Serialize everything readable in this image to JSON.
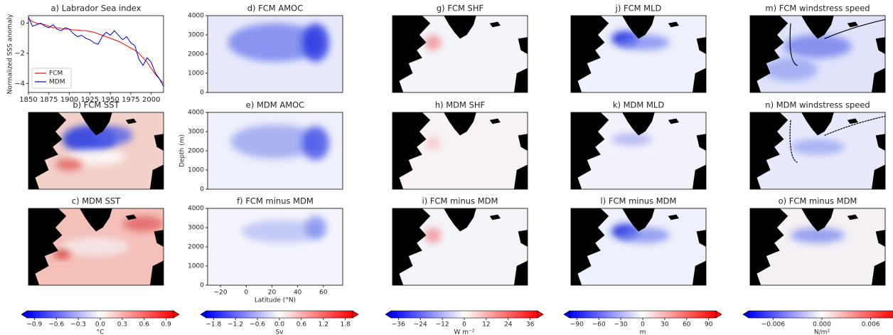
{
  "chart_data": [
    {
      "type": "line",
      "title": "a) Labrador Sea index",
      "y_label": "Normalized SSS anomaly",
      "x": [
        1850,
        1855,
        1860,
        1865,
        1870,
        1875,
        1880,
        1885,
        1890,
        1895,
        1900,
        1905,
        1910,
        1915,
        1920,
        1925,
        1930,
        1935,
        1940,
        1945,
        1950,
        1955,
        1960,
        1965,
        1970,
        1975,
        1980,
        1985,
        1990,
        1995,
        2000,
        2005,
        2010,
        2015
      ],
      "series": [
        {
          "name": "FCM",
          "color": "#ff0000",
          "values": [
            0.3,
            0.1,
            0.0,
            -0.05,
            -0.1,
            -0.2,
            -0.3,
            -0.3,
            -0.35,
            -0.4,
            -0.4,
            -0.45,
            -0.45,
            -0.5,
            -0.5,
            -0.55,
            -0.6,
            -0.7,
            -0.8,
            -0.9,
            -1.0,
            -1.1,
            -1.2,
            -1.35,
            -1.5,
            -1.65,
            -1.8,
            -2.0,
            -2.3,
            -2.6,
            -3.0,
            -3.4,
            -3.7,
            -4.0
          ]
        },
        {
          "name": "MDM",
          "color": "#0000cc",
          "values": [
            0.4,
            -0.2,
            -0.1,
            0.0,
            -0.2,
            -0.3,
            -0.1,
            -0.4,
            -0.5,
            -0.3,
            -0.4,
            -0.7,
            -0.9,
            -0.8,
            -1.0,
            -1.1,
            -1.3,
            -1.4,
            -0.9,
            -0.6,
            -0.8,
            -0.5,
            -0.8,
            -1.1,
            -0.9,
            -1.3,
            -1.5,
            -2.4,
            -2.8,
            -2.3,
            -2.6,
            -3.3,
            -3.7,
            -4.2
          ]
        }
      ],
      "xlim": [
        1850,
        2015
      ],
      "xticks": [
        1850,
        1875,
        1900,
        1925,
        1950,
        1975,
        2000
      ],
      "ylim": [
        -4.6,
        0.5
      ],
      "yticks": [
        0,
        {
          "value": -2,
          "label": "−2"
        },
        {
          "value": -4,
          "label": "−4"
        }
      ],
      "legend": "lower left"
    },
    {
      "type": "map",
      "title": "b) FCM SST"
    },
    {
      "type": "map",
      "title": "c) MDM SST"
    },
    {
      "type": "contour",
      "title": "d) FCM AMOC",
      "xlim": [
        -30,
        75
      ],
      "ylim": [
        4000,
        0
      ],
      "yticks": [
        0,
        1000,
        2000,
        3000,
        4000
      ]
    },
    {
      "type": "contour",
      "title": "e) MDM AMOC",
      "y_label": "Depth (m)",
      "xlim": [
        -30,
        75
      ],
      "ylim": [
        4000,
        0
      ],
      "yticks": [
        0,
        1000,
        2000,
        3000,
        4000
      ]
    },
    {
      "type": "contour",
      "title": "f) FCM minus MDM",
      "x_label": "Latitude (°N)",
      "xlim": [
        -30,
        75
      ],
      "ylim": [
        4000,
        0
      ],
      "yticks": [
        0,
        1000,
        2000,
        3000,
        4000
      ],
      "xticks": [
        {
          "value": -20,
          "label": "−20"
        },
        0,
        20,
        40,
        60
      ]
    },
    {
      "type": "map",
      "title": "g) FCM SHF"
    },
    {
      "type": "map",
      "title": "h) MDM SHF"
    },
    {
      "type": "map",
      "title": "i) FCM minus MDM"
    },
    {
      "type": "map",
      "title": "j) FCM MLD"
    },
    {
      "type": "map",
      "title": "k) MDM MLD"
    },
    {
      "type": "map",
      "title": "l) FCM minus MDM"
    },
    {
      "type": "map",
      "title": "m) FCM windstress speed"
    },
    {
      "type": "map",
      "title": "n) MDM windstress speed"
    },
    {
      "type": "map",
      "title": "o) FCM minus MDM"
    },
    {
      "type": "colorbar",
      "label": "°C",
      "lim": [
        -1.0,
        1.0
      ],
      "ticks": [
        {
          "value": -0.9,
          "label": "−0.9"
        },
        {
          "value": -0.6,
          "label": "−0.6"
        },
        {
          "value": -0.3,
          "label": "−0.3"
        },
        {
          "value": 0,
          "label": "0.0"
        },
        0.3,
        0.6,
        0.9
      ]
    },
    {
      "type": "colorbar",
      "label": "Sv",
      "lim": [
        -2.0,
        2.0
      ],
      "ticks": [
        {
          "value": -1.8,
          "label": "−1.8"
        },
        {
          "value": -1.2,
          "label": "−1.2"
        },
        {
          "value": -0.6,
          "label": "−0.6"
        },
        {
          "value": 0,
          "label": "0.0"
        },
        0.6,
        1.2,
        1.8
      ]
    },
    {
      "type": "colorbar",
      "label": "W m⁻²",
      "lim": [
        -40,
        40
      ],
      "ticks": [
        {
          "value": -36,
          "label": "−36"
        },
        {
          "value": -24,
          "label": "−24"
        },
        {
          "value": -12,
          "label": "−12"
        },
        0,
        12,
        24,
        36
      ]
    },
    {
      "type": "colorbar",
      "label": "m",
      "lim": [
        -100,
        100
      ],
      "ticks": [
        {
          "value": -90,
          "label": "−90"
        },
        {
          "value": -60,
          "label": "−60"
        },
        {
          "value": -30,
          "label": "−30"
        },
        0,
        30,
        60,
        90
      ]
    },
    {
      "type": "colorbar",
      "label": "N/m²",
      "lim": [
        -0.009,
        0.009
      ],
      "ticks": [
        {
          "value": -0.006,
          "label": "−0.006"
        },
        {
          "value": 0,
          "label": "0.000"
        },
        0.006
      ]
    }
  ]
}
